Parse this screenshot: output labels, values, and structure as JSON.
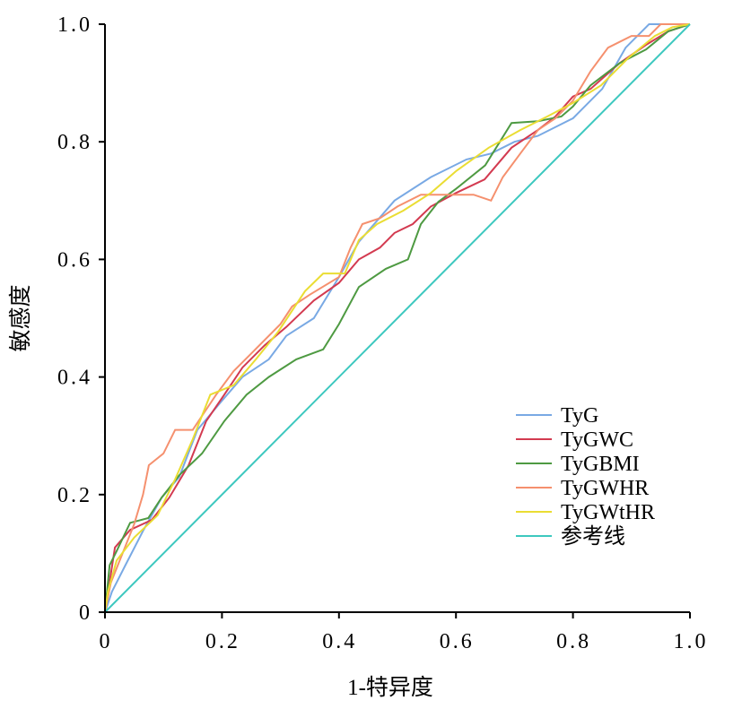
{
  "chart_data": {
    "type": "line",
    "title": "",
    "xlabel": "1-特异度",
    "ylabel": "敏感度",
    "xlim": [
      0,
      1
    ],
    "ylim": [
      0,
      1
    ],
    "x_ticks": [
      0,
      0.2,
      0.4,
      0.6,
      0.8,
      1.0
    ],
    "x_tick_labels": [
      "0",
      "0.2",
      "0.4",
      "0.6",
      "0.8",
      "1.0"
    ],
    "y_ticks": [
      0,
      0.2,
      0.4,
      0.6,
      0.8,
      1.0
    ],
    "y_tick_labels": [
      "0",
      "0.2",
      "0.4",
      "0.6",
      "0.8",
      "1.0"
    ],
    "grid": false,
    "legend_position": "right",
    "series": [
      {
        "name": "TyG",
        "color": "#79a9e4",
        "x": [
          0,
          0.012,
          0.035,
          0.066,
          0.097,
          0.127,
          0.158,
          0.196,
          0.235,
          0.28,
          0.31,
          0.357,
          0.4,
          0.434,
          0.495,
          0.557,
          0.618,
          0.66,
          0.7,
          0.74,
          0.78,
          0.8,
          0.85,
          0.89,
          0.93,
          1
        ],
        "y": [
          0,
          0.035,
          0.08,
          0.14,
          0.195,
          0.23,
          0.31,
          0.355,
          0.4,
          0.43,
          0.47,
          0.5,
          0.57,
          0.63,
          0.7,
          0.74,
          0.77,
          0.78,
          0.8,
          0.81,
          0.83,
          0.84,
          0.89,
          0.96,
          1.0,
          1.0
        ]
      },
      {
        "name": "TyGWC",
        "color": "#d33a50",
        "x": [
          0,
          0.017,
          0.043,
          0.08,
          0.11,
          0.143,
          0.173,
          0.204,
          0.235,
          0.273,
          0.31,
          0.357,
          0.4,
          0.434,
          0.47,
          0.495,
          0.526,
          0.557,
          0.6,
          0.649,
          0.695,
          0.74,
          0.77,
          0.8,
          0.83,
          0.88,
          0.925,
          0.963,
          1
        ],
        "y": [
          0,
          0.11,
          0.14,
          0.157,
          0.195,
          0.25,
          0.325,
          0.37,
          0.416,
          0.454,
          0.485,
          0.53,
          0.56,
          0.6,
          0.62,
          0.645,
          0.66,
          0.69,
          0.713,
          0.736,
          0.79,
          0.82,
          0.843,
          0.877,
          0.89,
          0.934,
          0.965,
          0.988,
          1
        ]
      },
      {
        "name": "TyGBMI",
        "color": "#4e9a42",
        "x": [
          0,
          0.008,
          0.02,
          0.043,
          0.074,
          0.097,
          0.127,
          0.166,
          0.204,
          0.242,
          0.28,
          0.327,
          0.373,
          0.4,
          0.434,
          0.48,
          0.518,
          0.54,
          0.57,
          0.6,
          0.65,
          0.695,
          0.74,
          0.78,
          0.8,
          0.83,
          0.88,
          0.925,
          0.963,
          1
        ],
        "y": [
          0,
          0.08,
          0.104,
          0.152,
          0.16,
          0.195,
          0.233,
          0.27,
          0.325,
          0.37,
          0.4,
          0.43,
          0.447,
          0.49,
          0.553,
          0.584,
          0.6,
          0.66,
          0.698,
          0.72,
          0.76,
          0.832,
          0.835,
          0.843,
          0.86,
          0.896,
          0.934,
          0.957,
          0.988,
          1
        ]
      },
      {
        "name": "TyGWHR",
        "color": "#f5906e",
        "x": [
          0,
          0.01,
          0.03,
          0.05,
          0.065,
          0.075,
          0.1,
          0.12,
          0.15,
          0.17,
          0.19,
          0.22,
          0.25,
          0.28,
          0.3,
          0.32,
          0.35,
          0.4,
          0.42,
          0.44,
          0.47,
          0.5,
          0.54,
          0.6,
          0.63,
          0.66,
          0.68,
          0.71,
          0.74,
          0.77,
          0.8,
          0.83,
          0.86,
          0.9,
          0.93,
          0.95,
          1
        ],
        "y": [
          0,
          0.05,
          0.1,
          0.15,
          0.2,
          0.25,
          0.27,
          0.31,
          0.31,
          0.34,
          0.37,
          0.41,
          0.44,
          0.47,
          0.49,
          0.52,
          0.54,
          0.57,
          0.62,
          0.66,
          0.67,
          0.69,
          0.71,
          0.71,
          0.71,
          0.7,
          0.74,
          0.78,
          0.82,
          0.84,
          0.87,
          0.92,
          0.96,
          0.98,
          0.98,
          1.0,
          1
        ]
      },
      {
        "name": "TyGWtHR",
        "color": "#eadd33",
        "x": [
          0,
          0.005,
          0.02,
          0.05,
          0.09,
          0.12,
          0.15,
          0.18,
          0.22,
          0.258,
          0.296,
          0.342,
          0.373,
          0.41,
          0.434,
          0.465,
          0.51,
          0.557,
          0.6,
          0.656,
          0.71,
          0.756,
          0.8,
          0.848,
          0.894,
          0.94,
          0.97,
          1
        ],
        "y": [
          0,
          0.035,
          0.088,
          0.127,
          0.165,
          0.226,
          0.294,
          0.37,
          0.386,
          0.43,
          0.477,
          0.546,
          0.576,
          0.576,
          0.633,
          0.66,
          0.683,
          0.713,
          0.75,
          0.79,
          0.82,
          0.843,
          0.866,
          0.896,
          0.942,
          0.98,
          0.995,
          1
        ]
      },
      {
        "name": "参考线",
        "color": "#3dc8bf",
        "x": [
          0,
          1
        ],
        "y": [
          0,
          1
        ]
      }
    ]
  }
}
